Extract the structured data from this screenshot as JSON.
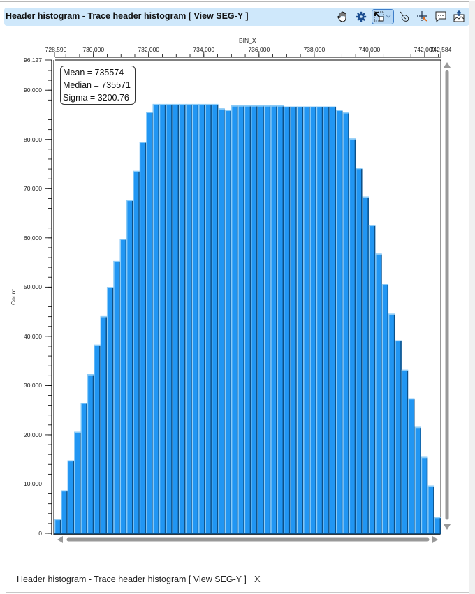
{
  "window": {
    "title": "Header histogram - Trace header histogram [ View SEG-Y ]"
  },
  "toolbar": {
    "tools": [
      {
        "name": "pan-hand-icon",
        "label": "Pan"
      },
      {
        "name": "settings-gear-icon",
        "label": "Settings"
      },
      {
        "name": "zoom-select-icon",
        "label": "Selection mode",
        "selected": true
      },
      {
        "name": "mouse-pointer-icon",
        "label": "Pointer"
      },
      {
        "name": "crosshair-cursor-icon",
        "label": "Crosshair"
      },
      {
        "name": "comment-icon",
        "label": "Annotate"
      },
      {
        "name": "export-image-icon",
        "label": "Export"
      }
    ]
  },
  "stats": {
    "mean": "Mean = 735574",
    "median": "Median = 735571",
    "sigma": "Sigma = 3200.76"
  },
  "bottom_tab": {
    "label": "Header histogram - Trace header histogram [ View SEG-Y ]",
    "close": "X"
  },
  "colors": {
    "bar_fill": "#2196f3",
    "bar_highlight": "#90cdf7",
    "bar_shadow": "#0d4f86",
    "titlebar_bg": "#cfe8fb",
    "scrollbar": "#999999"
  },
  "chart_data": {
    "type": "bar",
    "title": "",
    "xlabel": "BIN_X",
    "ylabel": "Count",
    "xlim": [
      728590,
      742584
    ],
    "ylim": [
      0,
      96127
    ],
    "x_tick_labels": [
      "728,590",
      "730,000",
      "732,000",
      "734,000",
      "736,000",
      "738,000",
      "740,000",
      "742,000",
      "742,584"
    ],
    "x_ticks": [
      728590,
      730000,
      732000,
      734000,
      736000,
      738000,
      740000,
      742000,
      742584
    ],
    "y_tick_labels": [
      "0",
      "10,000",
      "20,000",
      "30,000",
      "40,000",
      "50,000",
      "60,000",
      "70,000",
      "80,000",
      "90,000",
      "96,127"
    ],
    "y_ticks": [
      0,
      10000,
      20000,
      30000,
      40000,
      50000,
      60000,
      70000,
      80000,
      90000,
      96127
    ],
    "grid": false,
    "legend": "none",
    "annotations": [
      "Mean = 735574",
      "Median = 735571",
      "Sigma = 3200.76"
    ],
    "bin_count": 59,
    "values": [
      2900,
      8700,
      14800,
      20600,
      26500,
      32300,
      38300,
      44100,
      50000,
      55300,
      59800,
      67700,
      73600,
      79500,
      85600,
      87200,
      87200,
      87200,
      87200,
      87200,
      87200,
      87200,
      87200,
      87200,
      87200,
      86300,
      86000,
      86900,
      86900,
      86900,
      86900,
      86900,
      86900,
      86900,
      86900,
      86700,
      86700,
      86700,
      86700,
      86700,
      86700,
      86700,
      86700,
      86000,
      85500,
      80200,
      74200,
      68400,
      62600,
      56800,
      50600,
      44600,
      39200,
      33200,
      27400,
      21600,
      15500,
      9700,
      3300
    ]
  }
}
